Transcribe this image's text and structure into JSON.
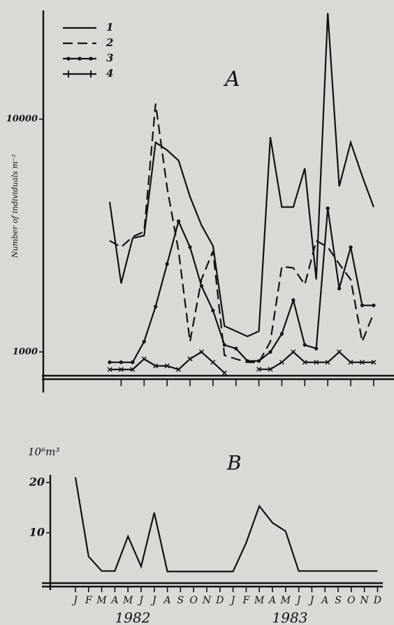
{
  "chart_data": [
    {
      "type": "line",
      "title": "A",
      "y_label": "Number of individuals  m⁻²",
      "categories": [
        null,
        null,
        null,
        null,
        null,
        null,
        null,
        null,
        null,
        null,
        null,
        null,
        null,
        null,
        null,
        null,
        null,
        null,
        null,
        null,
        null,
        null,
        null,
        null
      ],
      "ylim": [
        0,
        14200
      ],
      "yticks": [
        1000,
        10000
      ],
      "series": [
        {
          "name": "1",
          "color": "#111111",
          "style": "solid",
          "marker": "none",
          "values": [
            6800,
            3650,
            5400,
            5500,
            9100,
            8800,
            8400,
            7000,
            5900,
            5100,
            2000,
            1800,
            1600,
            1800,
            9300,
            6600,
            6600,
            8100,
            3800,
            14100,
            7400,
            9100,
            7800,
            6600
          ]
        },
        {
          "name": "2",
          "color": "#111111",
          "style": "dashed",
          "marker": "none",
          "values": [
            5300,
            5050,
            5450,
            5650,
            10600,
            7350,
            4900,
            1400,
            3800,
            4900,
            870,
            730,
            600,
            600,
            1400,
            4300,
            4250,
            3600,
            5300,
            5050,
            4400,
            3800,
            1400,
            2500
          ]
        },
        {
          "name": "3",
          "color": "#111111",
          "style": "solid",
          "marker": "dot",
          "values": [
            600,
            600,
            600,
            1400,
            2750,
            4400,
            6050,
            5050,
            3550,
            2600,
            1270,
            1130,
            650,
            650,
            1000,
            1700,
            3000,
            1270,
            1130,
            6550,
            3450,
            5050,
            2800,
            2800
          ]
        },
        {
          "name": "4",
          "color": "#111111",
          "style": "solid",
          "marker": "cross",
          "values": [
            320,
            320,
            320,
            730,
            460,
            460,
            320,
            730,
            1000,
            600,
            190,
            null,
            null,
            330,
            330,
            600,
            1000,
            600,
            600,
            600,
            1000,
            600,
            600,
            600
          ]
        }
      ]
    },
    {
      "type": "line",
      "title": "B",
      "y_label": "10⁶m³",
      "categories": [
        "J",
        "F",
        "M",
        "A",
        "M",
        "J",
        "J",
        "A",
        "S",
        "O",
        "N",
        "D",
        "J",
        "F",
        "M",
        "A",
        "M",
        "J",
        "J",
        "A",
        "S",
        "O",
        "N",
        "D"
      ],
      "year_labels": [
        "1982",
        "1983"
      ],
      "ylim": [
        0,
        21.5
      ],
      "yticks": [
        10,
        20
      ],
      "series": [
        {
          "name": null,
          "color": "#111111",
          "style": "solid",
          "marker": "none",
          "values": [
            21,
            5.3,
            2.4,
            2.4,
            9.3,
            3.3,
            14,
            2.3,
            2.3,
            2.3,
            2.3,
            2.3,
            2.3,
            8,
            15.3,
            12,
            10.3,
            2.4,
            2.4,
            2.4,
            2.4,
            2.4,
            2.4,
            2.4
          ]
        }
      ]
    }
  ]
}
